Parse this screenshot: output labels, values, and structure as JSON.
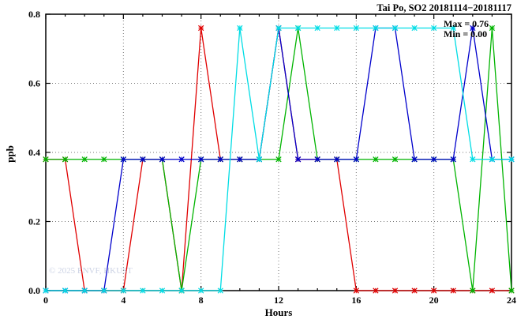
{
  "title": "Tai Po, SO2 20181114−20181117",
  "annotation": {
    "max_label": "Max = 0.76",
    "min_label": "Min = 0.00"
  },
  "watermark": "© 2025 ENVF, HKUST",
  "chart_data": {
    "type": "line",
    "title": "Tai Po, SO2 20181114−20181117",
    "xlabel": "Hours",
    "ylabel": "ppb",
    "xlim": [
      0,
      24
    ],
    "ylim": [
      0,
      0.8
    ],
    "xticks": [
      0,
      4,
      8,
      12,
      16,
      20,
      24
    ],
    "yticks": [
      0.0,
      0.2,
      0.4,
      0.6,
      0.8
    ],
    "grid": true,
    "max": 0.76,
    "min": 0.0,
    "x": [
      0,
      1,
      2,
      3,
      4,
      5,
      6,
      7,
      8,
      9,
      10,
      11,
      12,
      13,
      14,
      15,
      16,
      17,
      18,
      19,
      20,
      21,
      22,
      23,
      24
    ],
    "series": [
      {
        "name": "red-series",
        "color": "#e00000",
        "values": [
          0.38,
          0.38,
          0.0,
          0.0,
          0.0,
          0.38,
          0.38,
          0.0,
          0.76,
          0.38,
          0.38,
          0.38,
          0.76,
          0.38,
          0.38,
          0.38,
          0.0,
          0.0,
          0.0,
          0.0,
          0.0,
          0.0,
          0.0,
          0.0,
          0.0
        ]
      },
      {
        "name": "green-series",
        "color": "#00b400",
        "values": [
          0.38,
          0.38,
          0.38,
          0.38,
          0.38,
          0.38,
          0.38,
          0.0,
          0.38,
          0.38,
          0.38,
          0.38,
          0.38,
          0.76,
          0.38,
          0.38,
          0.38,
          0.38,
          0.38,
          0.38,
          0.38,
          0.38,
          0.0,
          0.76,
          0.0
        ]
      },
      {
        "name": "blue-series",
        "color": "#0000cc",
        "values": [
          0.0,
          0.0,
          0.0,
          0.0,
          0.38,
          0.38,
          0.38,
          0.38,
          0.38,
          0.38,
          0.38,
          0.38,
          0.76,
          0.38,
          0.38,
          0.38,
          0.38,
          0.76,
          0.76,
          0.38,
          0.38,
          0.38,
          0.76,
          0.38,
          0.38
        ]
      },
      {
        "name": "cyan-series",
        "color": "#00dde5",
        "values": [
          0.0,
          0.0,
          0.0,
          0.0,
          0.0,
          0.0,
          0.0,
          0.0,
          0.0,
          0.0,
          0.76,
          0.38,
          0.76,
          0.76,
          0.76,
          0.76,
          0.76,
          0.76,
          0.76,
          0.76,
          0.76,
          0.76,
          0.38,
          0.38,
          0.38
        ]
      }
    ]
  }
}
